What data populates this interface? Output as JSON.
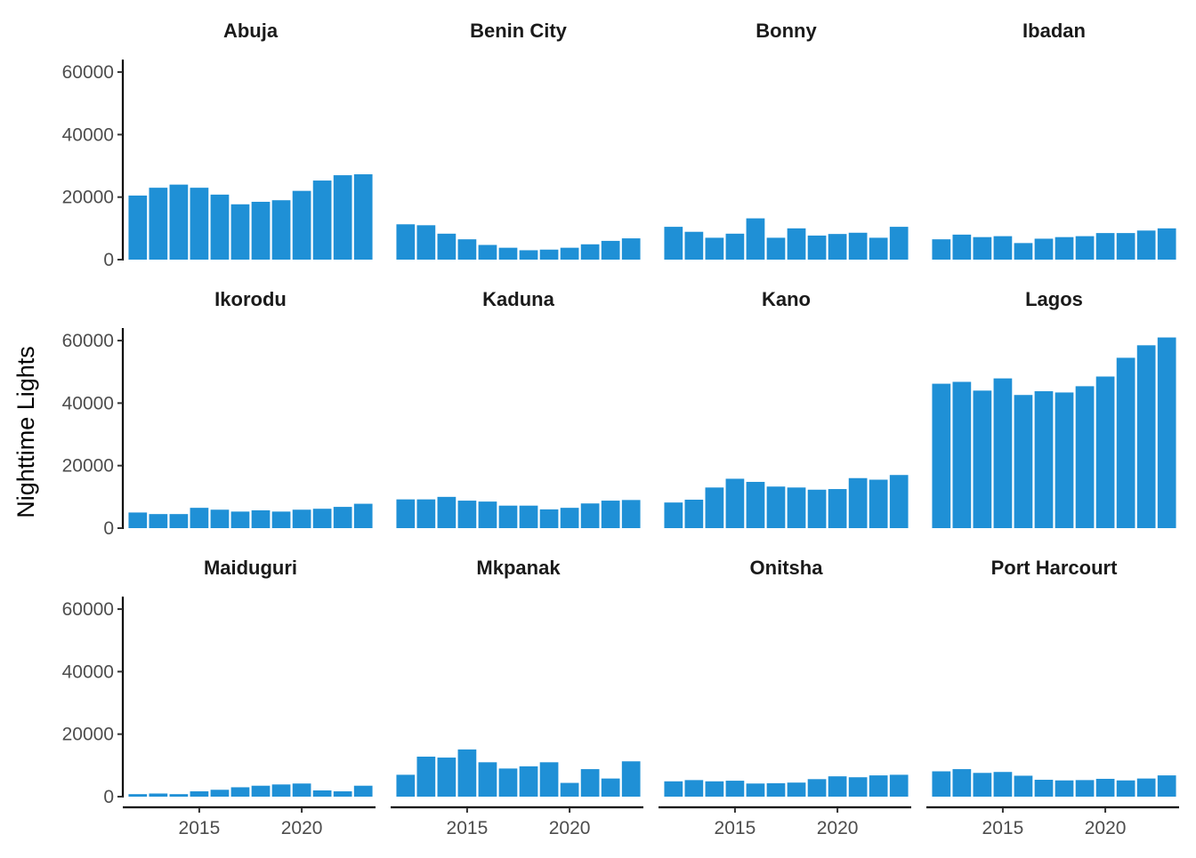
{
  "chart_data": {
    "type": "bar",
    "ylabel": "Nighttime Lights",
    "xlabel": "",
    "ylim": [
      0,
      64000
    ],
    "xlim": [
      2011.4,
      2023.6
    ],
    "y_ticks": [
      0,
      20000,
      40000,
      60000
    ],
    "y_tick_labels": [
      "0",
      "20000",
      "40000",
      "60000"
    ],
    "x_ticks": [
      2015,
      2020
    ],
    "x_tick_labels": [
      "2015",
      "2020"
    ],
    "years": [
      2012,
      2013,
      2014,
      2015,
      2016,
      2017,
      2018,
      2019,
      2020,
      2021,
      2022,
      2023
    ],
    "bar_color": "#1f90d6",
    "grid": false,
    "legend": "none",
    "facets": [
      {
        "name": "Abuja",
        "values": [
          20500,
          23000,
          24000,
          23000,
          20800,
          17700,
          18500,
          19000,
          22000,
          25300,
          27000,
          27300
        ]
      },
      {
        "name": "Benin City",
        "values": [
          11300,
          11000,
          8300,
          6500,
          4700,
          3800,
          3000,
          3200,
          3800,
          4900,
          6000,
          6800
        ]
      },
      {
        "name": "Bonny",
        "values": [
          10500,
          8900,
          7000,
          8300,
          13200,
          7000,
          10000,
          7700,
          8200,
          8600,
          7000,
          10500
        ]
      },
      {
        "name": "Ibadan",
        "values": [
          6500,
          8000,
          7200,
          7500,
          5300,
          6700,
          7200,
          7500,
          8500,
          8500,
          9300,
          10000
        ]
      },
      {
        "name": "Ikorodu",
        "values": [
          5000,
          4500,
          4500,
          6500,
          5900,
          5300,
          5700,
          5300,
          5900,
          6200,
          6800,
          7800
        ]
      },
      {
        "name": "Kaduna",
        "values": [
          9200,
          9200,
          10000,
          8800,
          8500,
          7200,
          7200,
          6000,
          6500,
          7900,
          8800,
          9000
        ]
      },
      {
        "name": "Kano",
        "values": [
          8200,
          9100,
          13000,
          15800,
          14800,
          13300,
          13000,
          12300,
          12500,
          16000,
          15500,
          17000
        ]
      },
      {
        "name": "Lagos",
        "values": [
          46200,
          46800,
          44000,
          47900,
          42600,
          43800,
          43400,
          45400,
          48500,
          54500,
          58500,
          61000
        ]
      },
      {
        "name": "Maiduguri",
        "values": [
          800,
          1000,
          800,
          1700,
          2200,
          3000,
          3500,
          3900,
          4200,
          2000,
          1700,
          3500
        ]
      },
      {
        "name": "Mkpanak",
        "values": [
          7000,
          12800,
          12500,
          15100,
          11000,
          9000,
          9700,
          11000,
          4400,
          8800,
          5800,
          11300
        ]
      },
      {
        "name": "Onitsha",
        "values": [
          4900,
          5300,
          4900,
          5100,
          4200,
          4300,
          4500,
          5600,
          6500,
          6200,
          6800,
          7000
        ]
      },
      {
        "name": "Port Harcourt",
        "values": [
          8100,
          8800,
          7600,
          7900,
          6700,
          5400,
          5200,
          5300,
          5700,
          5200,
          5800,
          6800
        ]
      }
    ]
  }
}
